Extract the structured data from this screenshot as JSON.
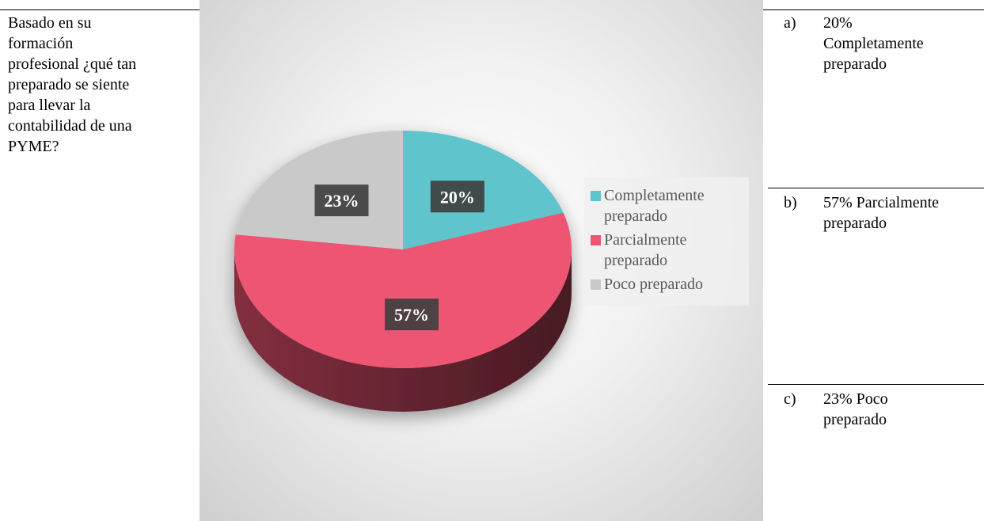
{
  "question": "Basado en su formación profesional ¿qué tan preparado se siente para llevar la contabilidad de una PYME?",
  "options": [
    {
      "letter": "a)",
      "text": "20% Completamente preparado"
    },
    {
      "letter": "b)",
      "text": "57% Parcialmente preparado"
    },
    {
      "letter": "c)",
      "text": "23% Poco preparado"
    }
  ],
  "chart_data": {
    "type": "pie",
    "categories": [
      "Completamente preparado",
      "Parcialmente preparado",
      "Poco preparado"
    ],
    "values": [
      20,
      57,
      23
    ],
    "value_labels": [
      "20%",
      "57%",
      "23%"
    ],
    "colors": [
      "#5ec4cc",
      "#ee5572",
      "#c9c9c9"
    ],
    "legend": "right"
  }
}
